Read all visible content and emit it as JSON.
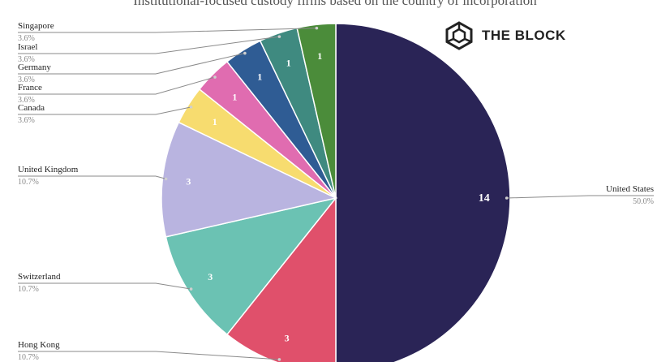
{
  "title": "Institutional-focused custody firms based on the country of incorporation",
  "brand": {
    "name": "THE BLOCK",
    "icon": "cube-logo-icon"
  },
  "colors": {
    "United States": "#2a2456",
    "Hong Kong": "#e0506b",
    "Switzerland": "#6bc2b3",
    "United Kingdom": "#b9b4e0",
    "Canada": "#f7dc6f",
    "France": "#e06cb0",
    "Germany": "#2f5c94",
    "Israel": "#3f8a80",
    "Singapore": "#4b8c3a"
  },
  "chart_data": {
    "type": "pie",
    "title": "Institutional-focused custody firms based on the country of incorporation",
    "slices": [
      {
        "label": "United States",
        "value": 14,
        "percent": "50.0%"
      },
      {
        "label": "Hong Kong",
        "value": 3,
        "percent": "10.7%"
      },
      {
        "label": "Switzerland",
        "value": 3,
        "percent": "10.7%"
      },
      {
        "label": "United Kingdom",
        "value": 3,
        "percent": "10.7%"
      },
      {
        "label": "Canada",
        "value": 1,
        "percent": "3.6%"
      },
      {
        "label": "France",
        "value": 1,
        "percent": "3.6%"
      },
      {
        "label": "Germany",
        "value": 1,
        "percent": "3.6%"
      },
      {
        "label": "Israel",
        "value": 1,
        "percent": "3.6%"
      },
      {
        "label": "Singapore",
        "value": 1,
        "percent": "3.6%"
      }
    ]
  }
}
